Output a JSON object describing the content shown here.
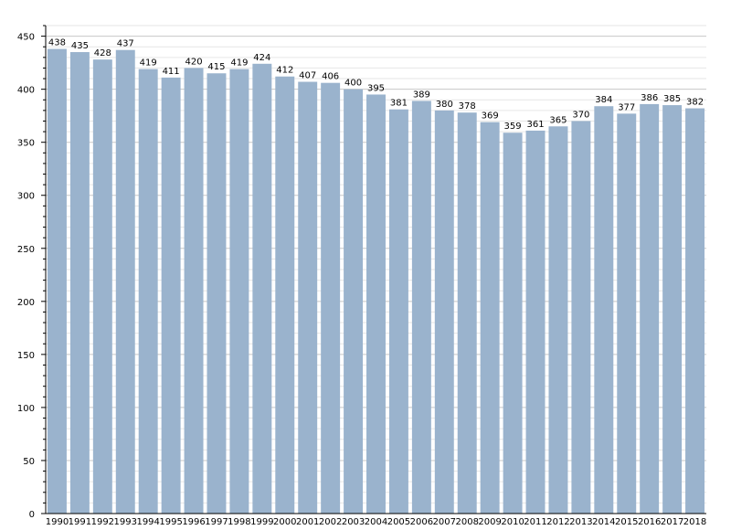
{
  "chart_data": {
    "type": "bar",
    "title": "",
    "xlabel": "",
    "ylabel": "",
    "categories": [
      "1990",
      "1991",
      "1992",
      "1993",
      "1994",
      "1995",
      "1996",
      "1997",
      "1998",
      "1999",
      "2000",
      "2001",
      "2002",
      "2003",
      "2004",
      "2005",
      "2006",
      "2007",
      "2008",
      "2009",
      "2010",
      "2011",
      "2012",
      "2013",
      "2014",
      "2015",
      "2016",
      "2017",
      "2018"
    ],
    "values": [
      438,
      435,
      428,
      437,
      419,
      411,
      420,
      415,
      419,
      424,
      412,
      407,
      406,
      400,
      395,
      381,
      389,
      380,
      378,
      369,
      359,
      361,
      365,
      370,
      384,
      377,
      386,
      385,
      382
    ],
    "ylim": [
      0,
      460
    ],
    "yticks": [
      0,
      50,
      100,
      150,
      200,
      250,
      300,
      350,
      400,
      450
    ],
    "minor_step": 10,
    "grid": true,
    "legend": "none",
    "colors": {
      "bar": "#9ab3cd",
      "grid_major": "#c8c8c8",
      "grid_minor": "#e6e6e6"
    }
  }
}
